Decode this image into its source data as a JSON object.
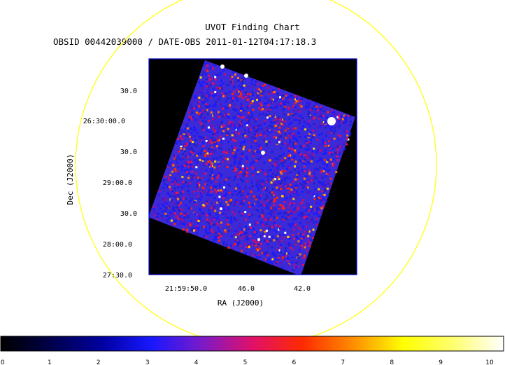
{
  "header": {
    "title": "UVOT Finding Chart",
    "subtitle": "OBSID 00442039000 / DATE-OBS 2011-01-12T04:17:18.3"
  },
  "axes": {
    "xlabel": "RA (J2000)",
    "ylabel": "Dec (J2000)",
    "x_ticks": [
      "21:59:50.0",
      "46.0",
      "42.0"
    ],
    "y_ticks": [
      "30.0",
      "26:30:00.0",
      "30.0",
      "29:00.0",
      "30.0",
      "28:00.0",
      "27:30.0"
    ]
  },
  "colorbar": {
    "labels": [
      "0",
      "1",
      "2",
      "3",
      "4",
      "5",
      "6",
      "7",
      "8",
      "9",
      "10"
    ],
    "range": [
      0,
      10
    ]
  },
  "colors": {
    "circle": "#ffff00",
    "frame": "#0000cc",
    "background": "#000000"
  }
}
